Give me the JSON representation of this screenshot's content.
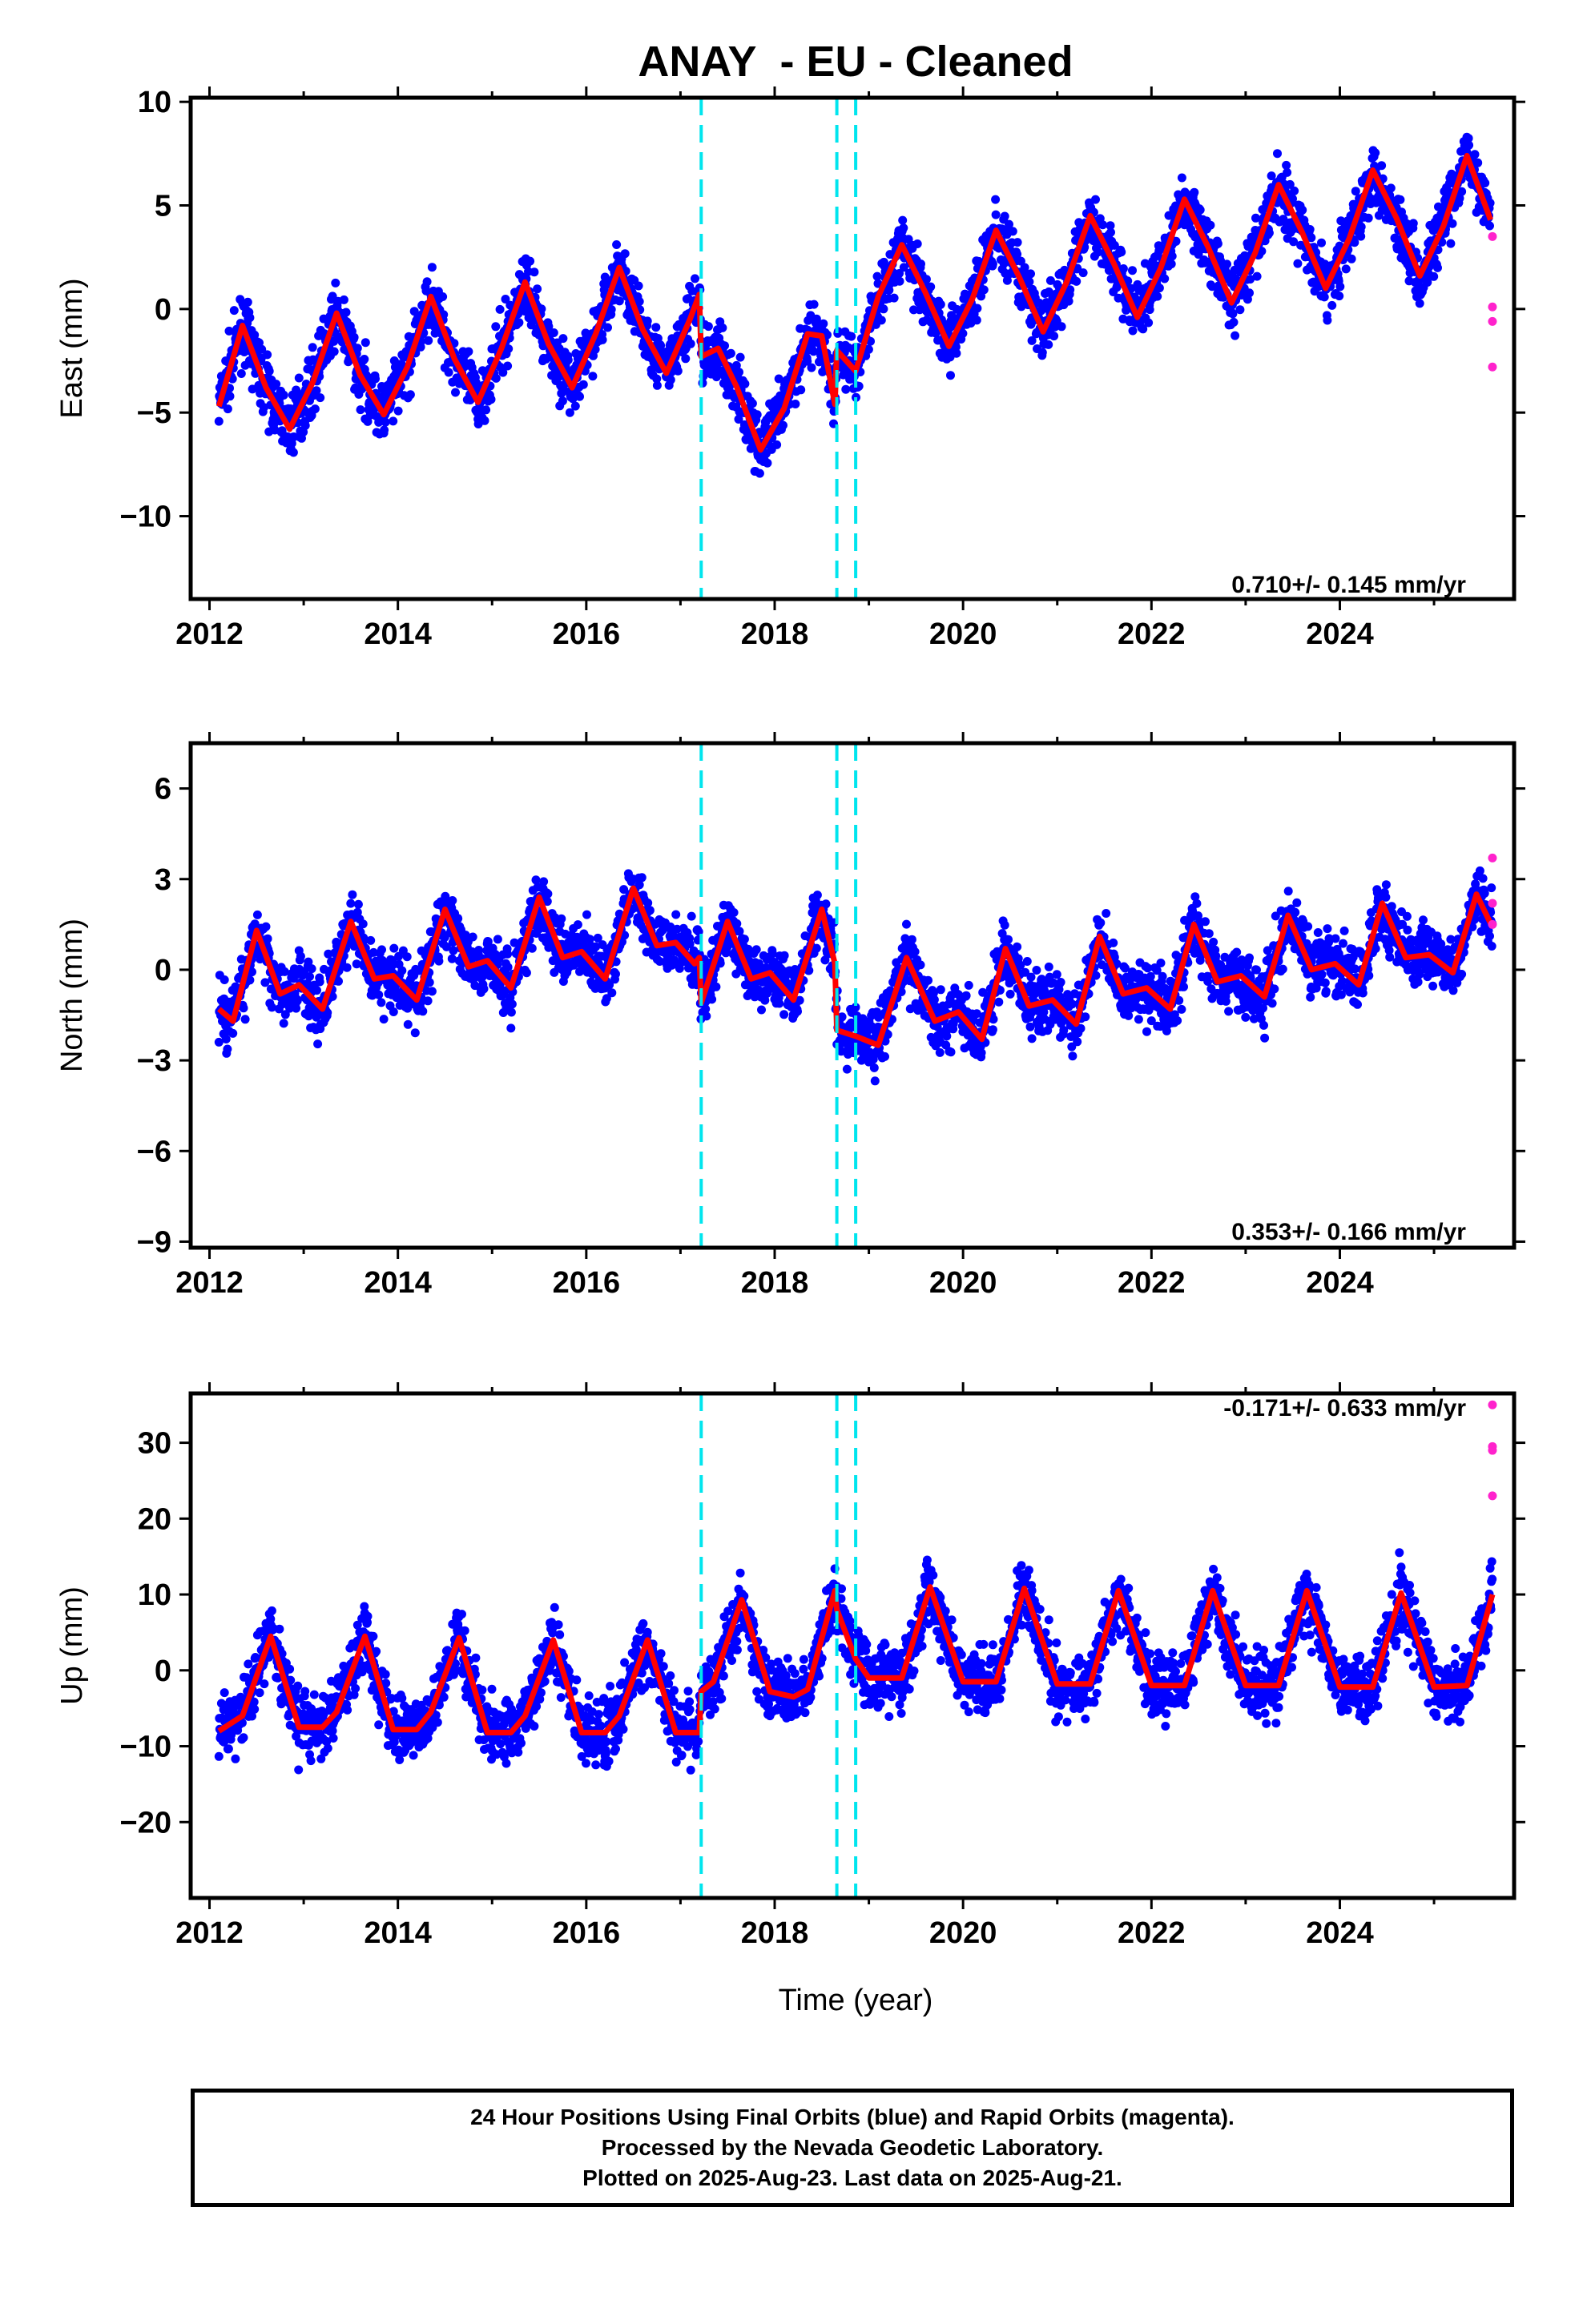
{
  "title": "ANAY  - EU - Cleaned",
  "xlabel": "Time (year)",
  "caption": [
    "24 Hour Positions Using Final Orbits (blue) and Rapid Orbits (magenta).",
    "Processed by the Nevada Geodetic Laboratory.",
    "Plotted on 2025-Aug-23. Last data on 2025-Aug-21."
  ],
  "colors": {
    "final_orbits": "#0000ff",
    "rapid_orbits": "#ff22cc",
    "model": "#ff0000",
    "events": "#00e5ee"
  },
  "chart_data": [
    {
      "type": "scatter",
      "ylabel": "East (mm)",
      "rate": "0.710+/- 0.145 mm/yr",
      "xlim": [
        2011.8,
        2025.85
      ],
      "ylim": [
        -14,
        10.2
      ],
      "xticks": [
        2012,
        2014,
        2016,
        2018,
        2020,
        2022,
        2024
      ],
      "yticks": [
        -10,
        -5,
        0,
        5,
        10
      ],
      "ytick_labels": [
        "−10",
        "−5",
        "0",
        "5",
        "10"
      ],
      "event_lines": [
        2017.22,
        2018.66,
        2018.86
      ],
      "model": {
        "x": [
          2012.1,
          2012.35,
          2012.6,
          2012.85,
          2013.1,
          2013.35,
          2013.6,
          2013.85,
          2014.1,
          2014.35,
          2014.6,
          2014.85,
          2015.1,
          2015.35,
          2015.6,
          2015.85,
          2016.1,
          2016.35,
          2016.6,
          2016.85,
          2017.1,
          2017.2,
          2017.22,
          2017.4,
          2017.6,
          2017.85,
          2018.1,
          2018.35,
          2018.5,
          2018.64,
          2018.66,
          2018.86,
          2019.1,
          2019.35,
          2019.6,
          2019.85,
          2020.1,
          2020.35,
          2020.6,
          2020.85,
          2021.1,
          2021.35,
          2021.6,
          2021.85,
          2022.1,
          2022.35,
          2022.6,
          2022.85,
          2023.1,
          2023.35,
          2023.6,
          2023.85,
          2024.1,
          2024.35,
          2024.6,
          2024.85,
          2025.1,
          2025.35,
          2025.6
        ],
        "y": [
          -4.7,
          -0.8,
          -3.8,
          -5.8,
          -3.5,
          -0.2,
          -3.2,
          -5.1,
          -2.8,
          0.6,
          -2.4,
          -4.5,
          -1.9,
          1.3,
          -1.7,
          -3.8,
          -1.2,
          2.0,
          -1.0,
          -3.1,
          -0.5,
          0.7,
          -2.3,
          -1.9,
          -3.8,
          -6.8,
          -4.8,
          -1.2,
          -1.3,
          -4.6,
          -2.0,
          -3.0,
          0.6,
          3.1,
          0.8,
          -1.8,
          0.5,
          3.8,
          1.5,
          -1.1,
          1.3,
          4.5,
          2.2,
          -0.4,
          2.0,
          5.3,
          3.0,
          0.3,
          2.7,
          6.0,
          3.7,
          1.0,
          3.4,
          6.7,
          4.4,
          1.6,
          4.0,
          7.4,
          4.3
        ]
      },
      "rapid": {
        "x": [
          2025.62,
          2025.62,
          2025.62,
          2025.62
        ],
        "y": [
          3.5,
          0.1,
          -0.6,
          -2.8
        ]
      }
    },
    {
      "type": "scatter",
      "ylabel": "North (mm)",
      "rate": "0.353+/- 0.166 mm/yr",
      "xlim": [
        2011.8,
        2025.85
      ],
      "ylim": [
        -9.2,
        7.5
      ],
      "xticks": [
        2012,
        2014,
        2016,
        2018,
        2020,
        2022,
        2024
      ],
      "yticks": [
        -9,
        -6,
        -3,
        0,
        3,
        6
      ],
      "ytick_labels": [
        "−9",
        "−6",
        "−3",
        "0",
        "3",
        "6"
      ],
      "event_lines": [
        2017.22,
        2018.66,
        2018.86
      ],
      "model": {
        "x": [
          2012.1,
          2012.25,
          2012.5,
          2012.75,
          2012.95,
          2013.2,
          2013.5,
          2013.75,
          2013.95,
          2014.2,
          2014.5,
          2014.75,
          2014.95,
          2015.2,
          2015.5,
          2015.75,
          2015.95,
          2016.2,
          2016.5,
          2016.75,
          2016.95,
          2017.15,
          2017.2,
          2017.22,
          2017.5,
          2017.75,
          2017.95,
          2018.2,
          2018.5,
          2018.64,
          2018.66,
          2018.86,
          2019.1,
          2019.4,
          2019.7,
          2019.95,
          2020.2,
          2020.45,
          2020.7,
          2020.95,
          2021.2,
          2021.45,
          2021.7,
          2021.95,
          2022.2,
          2022.45,
          2022.7,
          2022.95,
          2023.2,
          2023.45,
          2023.7,
          2023.95,
          2024.2,
          2024.45,
          2024.7,
          2024.95,
          2025.2,
          2025.45,
          2025.62
        ],
        "y": [
          -1.3,
          -1.7,
          1.3,
          -0.8,
          -0.5,
          -1.3,
          1.6,
          -0.3,
          -0.2,
          -1.0,
          2.0,
          0.1,
          0.3,
          -0.6,
          2.4,
          0.4,
          0.6,
          -0.3,
          2.7,
          0.8,
          0.9,
          0.2,
          0.4,
          -1.1,
          1.6,
          -0.3,
          -0.1,
          -1.0,
          2.0,
          0.2,
          -2.0,
          -2.2,
          -2.5,
          0.4,
          -1.7,
          -1.4,
          -2.3,
          0.7,
          -1.2,
          -1.0,
          -1.8,
          1.1,
          -0.8,
          -0.6,
          -1.3,
          1.5,
          -0.4,
          -0.2,
          -0.9,
          1.8,
          0.0,
          0.2,
          -0.5,
          2.2,
          0.4,
          0.5,
          -0.1,
          2.5,
          1.4
        ]
      },
      "rapid": {
        "x": [
          2025.62,
          2025.62,
          2025.62
        ],
        "y": [
          3.7,
          2.2,
          1.5
        ]
      }
    },
    {
      "type": "scatter",
      "ylabel": "Up (mm)",
      "rate": "-0.171+/- 0.633 mm/yr",
      "xlim": [
        2011.8,
        2025.85
      ],
      "ylim": [
        -30,
        36.5
      ],
      "xticks": [
        2012,
        2014,
        2016,
        2018,
        2020,
        2022,
        2024
      ],
      "yticks": [
        -20,
        -10,
        0,
        10,
        20,
        30
      ],
      "ytick_labels": [
        "−20",
        "−10",
        "0",
        "10",
        "20",
        "30"
      ],
      "event_lines": [
        2017.22,
        2018.66,
        2018.86
      ],
      "model": {
        "x": [
          2012.1,
          2012.35,
          2012.65,
          2012.95,
          2013.2,
          2013.35,
          2013.65,
          2013.95,
          2014.2,
          2014.35,
          2014.65,
          2014.95,
          2015.2,
          2015.35,
          2015.65,
          2015.95,
          2016.2,
          2016.35,
          2016.65,
          2016.95,
          2017.2,
          2017.22,
          2017.35,
          2017.65,
          2017.95,
          2018.2,
          2018.35,
          2018.64,
          2018.66,
          2018.86,
          2019.0,
          2019.35,
          2019.65,
          2020.0,
          2020.35,
          2020.65,
          2021.0,
          2021.35,
          2021.65,
          2022.0,
          2022.35,
          2022.65,
          2023.0,
          2023.35,
          2023.65,
          2024.0,
          2024.35,
          2024.65,
          2025.0,
          2025.35,
          2025.62
        ],
        "y": [
          -8,
          -6,
          4.5,
          -7.5,
          -7.5,
          -5.5,
          4.5,
          -7.8,
          -7.8,
          -5.5,
          4.3,
          -8.2,
          -8.2,
          -6,
          4,
          -8.2,
          -8.2,
          -6,
          4,
          -8.2,
          -8.2,
          -2.8,
          -1.5,
          9.3,
          -2.8,
          -3.5,
          -2.5,
          10.5,
          8,
          1.5,
          -1,
          -1,
          11,
          -1.5,
          -1.5,
          10.8,
          -1.8,
          -1.8,
          10.5,
          -2,
          -2,
          10.5,
          -2,
          -2,
          10.5,
          -2.2,
          -2.2,
          10.2,
          -2.2,
          -2,
          10
        ]
      },
      "rapid": {
        "x": [
          2025.62,
          2025.62,
          2025.62,
          2025.62
        ],
        "y": [
          35,
          29.5,
          29,
          23
        ]
      }
    }
  ]
}
